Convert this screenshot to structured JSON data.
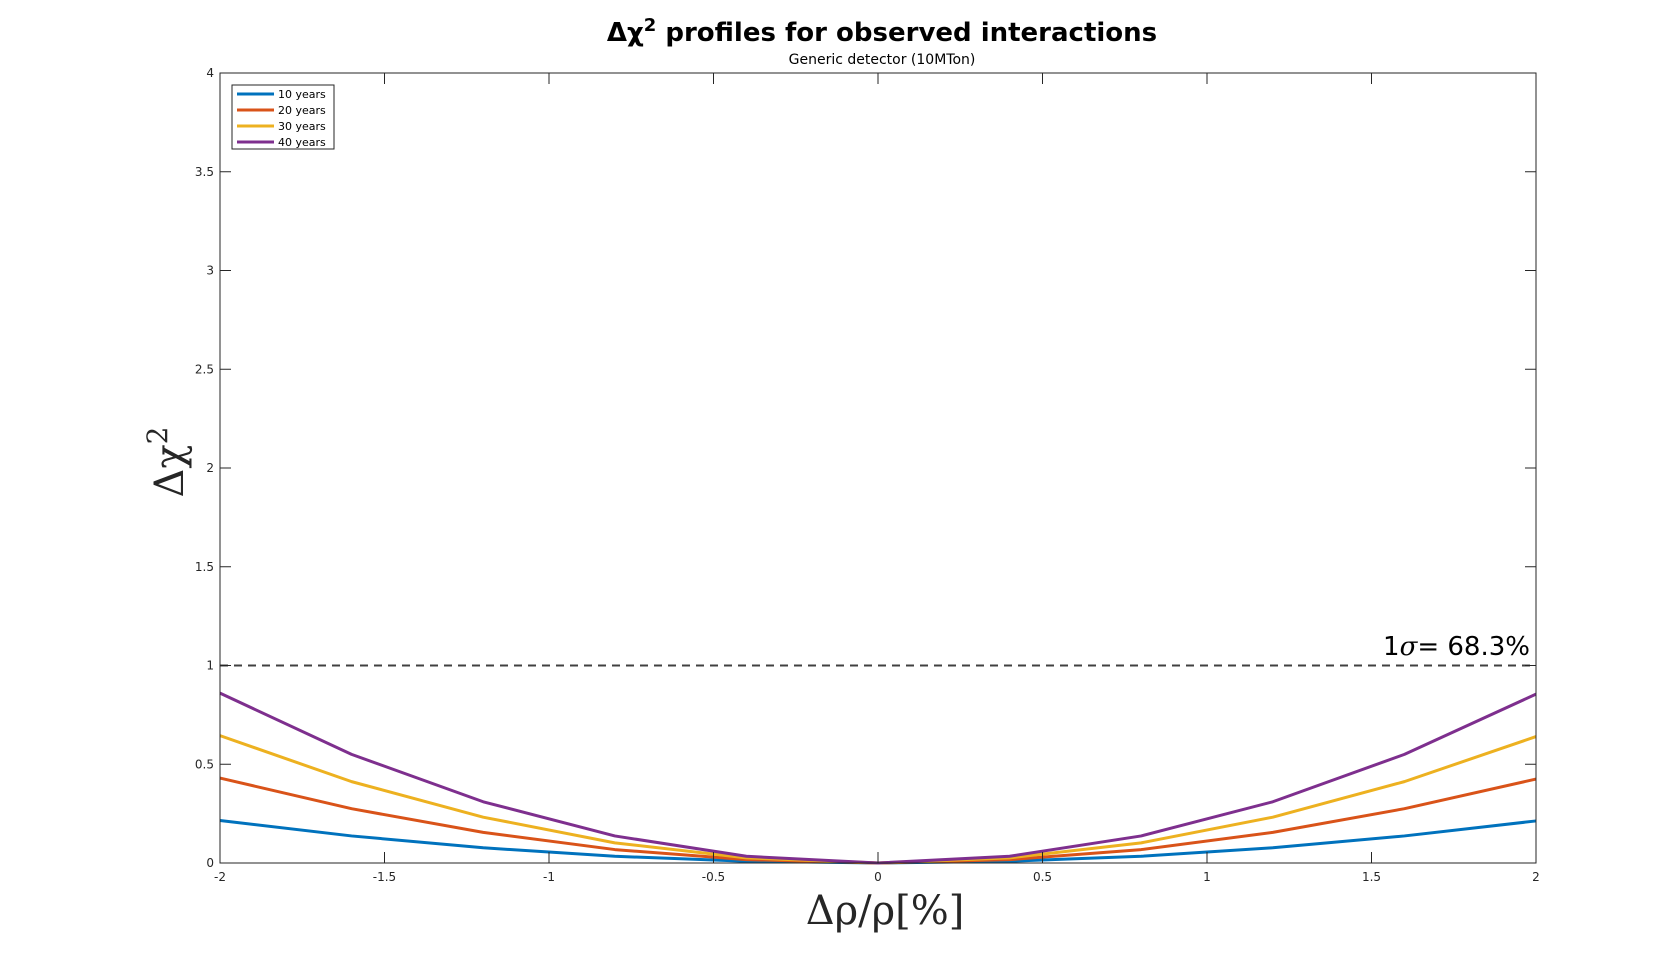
{
  "chart_data": {
    "type": "line",
    "title_prefix": "Δχ",
    "title_sup": "2",
    "title_rest": " profiles for observed interactions",
    "subtitle": "Generic detector (10MTon)",
    "xlabel": "Δρ/ρ[%]",
    "ylabel_main": "Δχ",
    "ylabel_sup": "2",
    "xlim": [
      -2,
      2
    ],
    "ylim": [
      0,
      4
    ],
    "x_ticks": [
      -2,
      -1.5,
      -1,
      -0.5,
      0,
      0.5,
      1,
      1.5,
      2
    ],
    "x_tick_labels": [
      "-2",
      "-1.5",
      "-1",
      "-0.5",
      "0",
      "0.5",
      "1",
      "1.5",
      "2"
    ],
    "y_ticks": [
      0,
      0.5,
      1,
      1.5,
      2,
      2.5,
      3,
      3.5,
      4
    ],
    "y_tick_labels": [
      "0",
      "0.5",
      "1",
      "1.5",
      "2",
      "2.5",
      "3",
      "3.5",
      "4"
    ],
    "grid": false,
    "legend_position": "top-left",
    "x": [
      -2,
      -1.6,
      -1.2,
      -0.8,
      -0.4,
      0,
      0.4,
      0.8,
      1.2,
      1.6,
      2
    ],
    "series": [
      {
        "name": "10 years",
        "color": "#0072BD",
        "values": [
          0.215,
          0.137,
          0.077,
          0.034,
          0.009,
          0,
          0.009,
          0.034,
          0.077,
          0.137,
          0.213
        ]
      },
      {
        "name": "20 years",
        "color": "#D95319",
        "values": [
          0.43,
          0.275,
          0.155,
          0.068,
          0.017,
          0,
          0.017,
          0.068,
          0.155,
          0.275,
          0.425
        ]
      },
      {
        "name": "30 years",
        "color": "#EDB120",
        "values": [
          0.645,
          0.412,
          0.232,
          0.102,
          0.026,
          0,
          0.026,
          0.102,
          0.232,
          0.412,
          0.64
        ]
      },
      {
        "name": "40 years",
        "color": "#7E2F8E",
        "values": [
          0.86,
          0.55,
          0.31,
          0.137,
          0.034,
          0,
          0.034,
          0.137,
          0.31,
          0.55,
          0.855
        ]
      }
    ],
    "reference_line": {
      "y": 1,
      "style": "dashed",
      "color": "#404040",
      "label_prefix": "1",
      "label_sigma": "σ",
      "label_rest": "= 68.3%"
    }
  }
}
